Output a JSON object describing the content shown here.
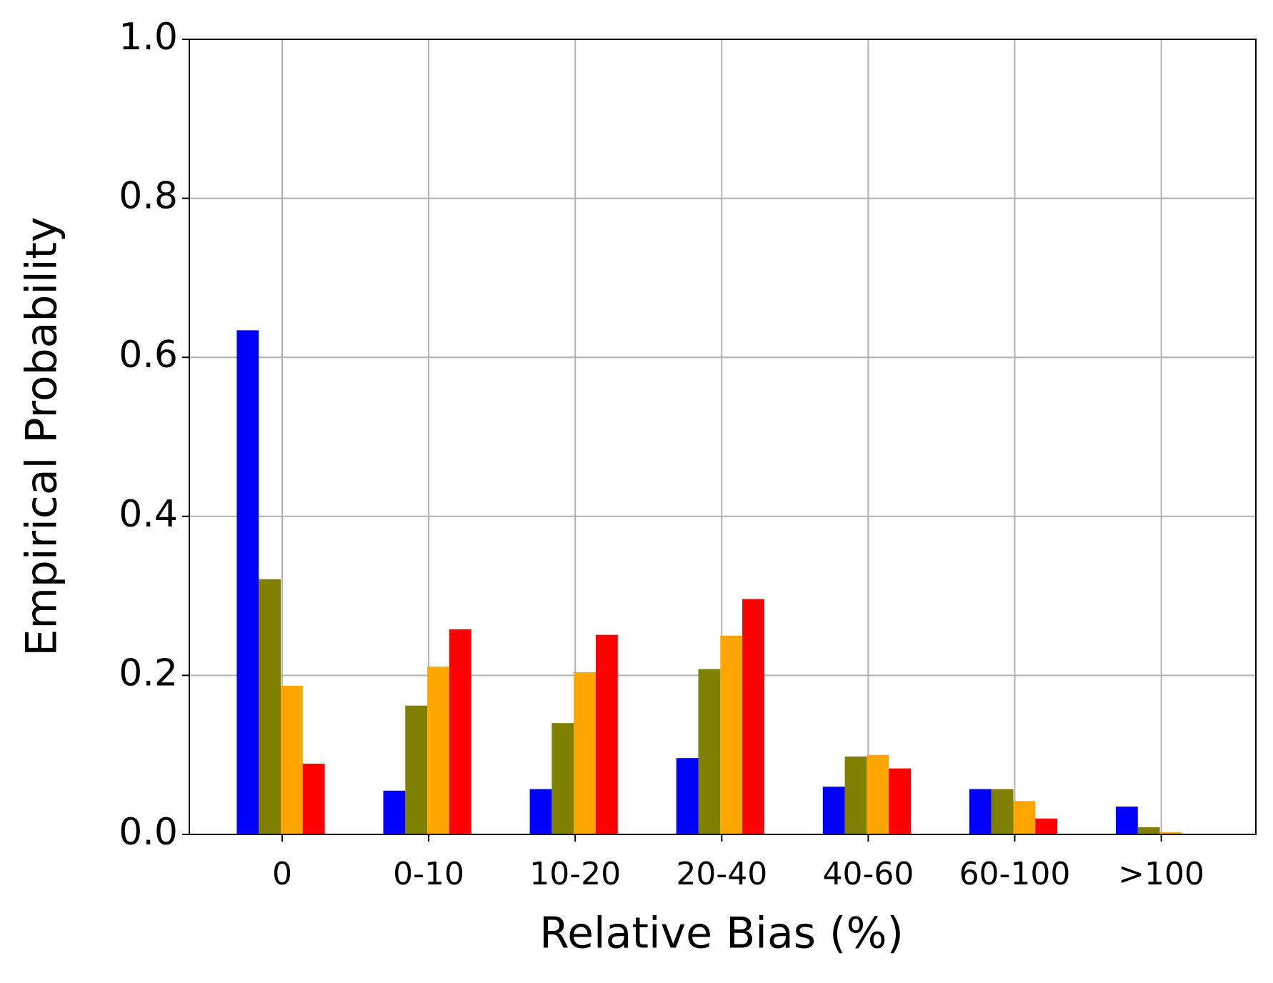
{
  "chart_data": {
    "type": "bar",
    "xlabel": "Relative Bias (%)",
    "ylabel": "Empirical Probability",
    "categories": [
      "0",
      "0-10",
      "10-20",
      "20-40",
      "40-60",
      "60-100",
      ">100"
    ],
    "series": [
      {
        "color": "#0000ff",
        "values": [
          0.634,
          0.055,
          0.057,
          0.096,
          0.06,
          0.057,
          0.035
        ]
      },
      {
        "color": "#808000",
        "values": [
          0.321,
          0.162,
          0.14,
          0.208,
          0.098,
          0.057,
          0.009
        ]
      },
      {
        "color": "#ffa500",
        "values": [
          0.187,
          0.211,
          0.204,
          0.25,
          0.1,
          0.042,
          0.003
        ]
      },
      {
        "color": "#ff0000",
        "values": [
          0.089,
          0.258,
          0.251,
          0.296,
          0.083,
          0.02,
          0
        ]
      }
    ],
    "ylim": [
      0,
      1
    ],
    "yticks": [
      {
        "value": 0,
        "label": "0.0"
      },
      0.2,
      0.4,
      0.6,
      0.8,
      {
        "value": 1,
        "label": "1.0"
      }
    ],
    "grid": true
  }
}
